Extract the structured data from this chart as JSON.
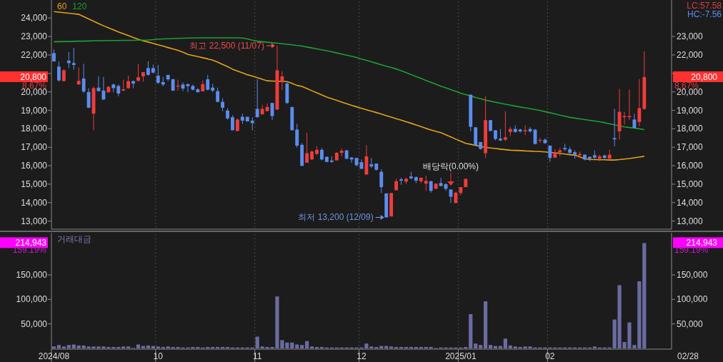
{
  "chart_data": [
    {
      "type": "candlestick",
      "categories": [
        "2024/08",
        null,
        null,
        null,
        null,
        null,
        null,
        null,
        null,
        null,
        null,
        null,
        null,
        null,
        null,
        null,
        null,
        null,
        null,
        null,
        null,
        "10",
        null,
        null,
        null,
        null,
        null,
        null,
        null,
        null,
        null,
        null,
        null,
        null,
        null,
        null,
        null,
        null,
        null,
        null,
        null,
        "11",
        null,
        null,
        null,
        null,
        null,
        null,
        null,
        null,
        null,
        null,
        null,
        null,
        null,
        null,
        null,
        null,
        null,
        null,
        null,
        null,
        "12",
        null,
        null,
        null,
        null,
        null,
        null,
        null,
        null,
        null,
        null,
        null,
        null,
        null,
        null,
        null,
        null,
        null,
        null,
        null,
        "2025/01",
        null,
        null,
        null,
        null,
        null,
        null,
        null,
        null,
        null,
        null,
        null,
        null,
        null,
        null,
        null,
        null,
        null,
        "02",
        null,
        null,
        null,
        null,
        null,
        null,
        null,
        null,
        null,
        null,
        null,
        null,
        null,
        null,
        null,
        null,
        null,
        null,
        null,
        null,
        null,
        null,
        null,
        null
      ],
      "ohlc": [
        [
          22100,
          22300,
          21650,
          21650
        ],
        [
          21370,
          21650,
          20560,
          20620
        ],
        [
          20580,
          21240,
          20580,
          21170
        ],
        [
          21690,
          22160,
          21300,
          21560
        ],
        [
          21560,
          22380,
          21200,
          21460
        ],
        [
          20400,
          21330,
          20400,
          20595
        ],
        [
          20720,
          21520,
          19940,
          20020
        ],
        [
          19990,
          20200,
          19120,
          19140
        ],
        [
          18820,
          20300,
          17920,
          20200
        ],
        [
          20230,
          20840,
          20020,
          20040
        ],
        [
          20070,
          20810,
          19550,
          19590
        ],
        [
          19980,
          20320,
          19960,
          20270
        ],
        [
          20400,
          20450,
          19980,
          20200
        ],
        [
          20320,
          20400,
          19760,
          19910
        ],
        [
          20070,
          20660,
          20040,
          20140
        ],
        [
          20200,
          20880,
          20170,
          20580
        ],
        [
          20580,
          20620,
          20200,
          20450
        ],
        [
          20600,
          21520,
          20560,
          20790
        ],
        [
          20840,
          21070,
          20560,
          21070
        ],
        [
          21290,
          21650,
          20880,
          20920
        ],
        [
          21290,
          21480,
          21010,
          21040
        ],
        [
          20880,
          21460,
          20430,
          20490
        ],
        [
          20530,
          20810,
          20300,
          20400
        ],
        [
          20920,
          20920,
          20590,
          20680
        ],
        [
          20680,
          20710,
          20040,
          20070
        ],
        [
          20290,
          20660,
          20070,
          20340
        ],
        [
          20400,
          20520,
          20040,
          20180
        ],
        [
          20420,
          20450,
          19980,
          20310
        ],
        [
          20320,
          20400,
          20070,
          20120
        ],
        [
          20140,
          20200,
          19980,
          19980
        ],
        [
          20030,
          20620,
          20030,
          20420
        ],
        [
          20680,
          20920,
          20070,
          20120
        ],
        [
          20230,
          20430,
          19980,
          20070
        ],
        [
          20040,
          20230,
          19430,
          19460
        ],
        [
          19460,
          19660,
          18950,
          19140
        ],
        [
          18990,
          19120,
          18500,
          18560
        ],
        [
          18630,
          18730,
          17920,
          17920
        ],
        [
          17880,
          18560,
          17880,
          18500
        ],
        [
          18650,
          18820,
          18270,
          18440
        ],
        [
          18650,
          18650,
          18400,
          18400
        ],
        [
          18440,
          18630,
          17920,
          18310
        ],
        [
          19080,
          20690,
          18600,
          18630
        ],
        [
          18780,
          19300,
          18780,
          19080
        ],
        [
          18960,
          19370,
          18950,
          19180
        ],
        [
          19400,
          19400,
          18470,
          18690
        ],
        [
          19040,
          22500,
          19040,
          21170
        ],
        [
          20560,
          21120,
          20090,
          20840
        ],
        [
          20450,
          20560,
          19340,
          19400
        ],
        [
          19180,
          19180,
          17920,
          17920
        ],
        [
          17960,
          18270,
          16980,
          17090
        ],
        [
          17130,
          17220,
          15990,
          15990
        ],
        [
          16160,
          17790,
          16160,
          16680
        ],
        [
          16340,
          16830,
          16320,
          16770
        ],
        [
          16640,
          17060,
          16570,
          16860
        ],
        [
          16860,
          16960,
          16290,
          16340
        ],
        [
          16480,
          16510,
          16180,
          16210
        ],
        [
          16280,
          16510,
          16160,
          16210
        ],
        [
          16290,
          16730,
          16290,
          16700
        ],
        [
          16700,
          16930,
          16510,
          16810
        ],
        [
          16830,
          16860,
          16340,
          16380
        ],
        [
          16440,
          16470,
          16160,
          16340
        ],
        [
          16420,
          16440,
          15960,
          16030
        ],
        [
          16190,
          16340,
          15830,
          15830
        ],
        [
          15520,
          17110,
          15520,
          16510
        ],
        [
          16080,
          16420,
          15870,
          15960
        ],
        [
          16120,
          16120,
          15740,
          15780
        ],
        [
          15670,
          15800,
          14520,
          14840
        ],
        [
          14500,
          14500,
          13200,
          13200
        ],
        [
          13250,
          14520,
          13250,
          14520
        ],
        [
          14670,
          15290,
          14670,
          15160
        ],
        [
          15260,
          15350,
          14970,
          15190
        ],
        [
          15140,
          15350,
          15010,
          15290
        ],
        [
          15420,
          15670,
          15260,
          15320
        ],
        [
          15380,
          15420,
          15060,
          15190
        ],
        [
          15160,
          15350,
          15060,
          15350
        ],
        [
          15030,
          15450,
          14640,
          15180
        ],
        [
          15160,
          15180,
          14540,
          14640
        ],
        [
          14750,
          15030,
          14750,
          15030
        ],
        [
          15060,
          15350,
          14880,
          14900
        ],
        [
          15000,
          15060,
          14640,
          14750
        ],
        [
          14710,
          14710,
          13980,
          14320
        ],
        [
          13980,
          14580,
          13980,
          14540
        ],
        [
          14520,
          14840,
          14390,
          14840
        ],
        [
          14840,
          15290,
          14840,
          15290
        ],
        [
          19850,
          19850,
          17860,
          18110
        ],
        [
          18080,
          18080,
          17090,
          17110
        ],
        [
          17280,
          17280,
          16870,
          16910
        ],
        [
          16680,
          19760,
          16420,
          18470
        ],
        [
          18470,
          18470,
          17880,
          17880
        ],
        [
          17920,
          17920,
          17370,
          17450
        ],
        [
          17470,
          17990,
          17340,
          17370
        ],
        [
          17410,
          18950,
          17340,
          17540
        ],
        [
          17830,
          18110,
          17600,
          17990
        ],
        [
          17990,
          18180,
          17790,
          17830
        ],
        [
          17960,
          18010,
          17790,
          17860
        ],
        [
          17860,
          18180,
          17660,
          17920
        ],
        [
          17990,
          18090,
          17790,
          17860
        ],
        [
          17950,
          17990,
          17150,
          17180
        ],
        [
          17360,
          17520,
          17240,
          17390
        ],
        [
          17410,
          17480,
          17190,
          17220
        ],
        [
          17090,
          17090,
          16210,
          16420
        ],
        [
          16440,
          16890,
          16420,
          16730
        ],
        [
          16730,
          16960,
          16510,
          16830
        ],
        [
          16960,
          17190,
          16800,
          16890
        ],
        [
          16890,
          17020,
          16640,
          16700
        ],
        [
          16730,
          16830,
          16380,
          16600
        ],
        [
          16570,
          16770,
          16440,
          16640
        ],
        [
          16600,
          16600,
          16290,
          16340
        ],
        [
          16480,
          16510,
          16250,
          16380
        ],
        [
          16570,
          16830,
          16380,
          16440
        ],
        [
          16380,
          16600,
          16250,
          16510
        ],
        [
          16550,
          16600,
          16380,
          16420
        ],
        [
          16380,
          16870,
          16380,
          16600
        ],
        [
          17500,
          19080,
          17060,
          17430
        ],
        [
          17860,
          20160,
          17410,
          18920
        ],
        [
          18630,
          18920,
          18220,
          18690
        ],
        [
          18630,
          20120,
          18470,
          18690
        ],
        [
          18500,
          18820,
          18050,
          18050
        ],
        [
          18370,
          20690,
          18140,
          19120
        ],
        [
          19080,
          22200,
          19020,
          20800
        ],
        null,
        null,
        null,
        null,
        null
      ],
      "colors": [
        "#5b8def",
        "#5b8def",
        "#f23b3b",
        "#5b8def",
        "#5b8def",
        "#f23b3b",
        "#5b8def",
        "#5b8def",
        "#f23b3b",
        "#5b8def",
        "#5b8def",
        "#f23b3b",
        "#5b8def",
        "#5b8def",
        "#f23b3b",
        "#f23b3b",
        "#5b8def",
        "#f23b3b",
        "#f23b3b",
        "#5b8def",
        "#5b8def",
        "#5b8def",
        "#5b8def",
        "#5b8def",
        "#5b8def",
        "#f23b3b",
        "#5b8def",
        "#5b8def",
        "#5b8def",
        "#5b8def",
        "#f23b3b",
        "#5b8def",
        "#5b8def",
        "#5b8def",
        "#5b8def",
        "#5b8def",
        "#5b8def",
        "#f23b3b",
        "#5b8def",
        "#5b8def",
        "#5b8def",
        "#5b8def",
        "#f23b3b",
        "#f23b3b",
        "#5b8def",
        "#f23b3b",
        "#f23b3b",
        "#5b8def",
        "#5b8def",
        "#5b8def",
        "#5b8def",
        "#f23b3b",
        "#f23b3b",
        "#f23b3b",
        "#5b8def",
        "#5b8def",
        "#5b8def",
        "#f23b3b",
        "#f23b3b",
        "#5b8def",
        "#5b8def",
        "#5b8def",
        "#5b8def",
        "#f23b3b",
        "#5b8def",
        "#5b8def",
        "#5b8def",
        "#5b8def",
        "#f23b3b",
        "#f23b3b",
        "#5b8def",
        "#f23b3b",
        "#5b8def",
        "#5b8def",
        "#f23b3b",
        "#f23b3b",
        "#5b8def",
        "#f23b3b",
        "#5b8def",
        "#5b8def",
        "#5b8def",
        "#f23b3b",
        "#f23b3b",
        "#f23b3b",
        "#5b8def",
        "#5b8def",
        "#5b8def",
        "#f23b3b",
        "#5b8def",
        "#5b8def",
        "#5b8def",
        "#f23b3b",
        "#f23b3b",
        "#5b8def",
        "#5b8def",
        "#f23b3b",
        "#5b8def",
        "#5b8def",
        "#f23b3b",
        "#5b8def",
        "#5b8def",
        "#f23b3b",
        "#f23b3b",
        "#5b8def",
        "#5b8def",
        "#5b8def",
        "#f23b3b",
        "#5b8def",
        "#5b8def",
        "#5b8def",
        "#f23b3b",
        "#5b8def",
        "#f23b3b",
        "#5b8def",
        "#f23b3b",
        "#f23b3b",
        "#f23b3b",
        "#5b8def",
        "#f23b3b",
        "#f23b3b",
        null,
        null,
        null,
        null,
        null
      ],
      "series": [
        {
          "name": "60",
          "type": "line",
          "color": "#e3a21a",
          "values": [
            24350,
            24320,
            24290,
            24260,
            24230,
            24200,
            24080,
            23950,
            23830,
            23700,
            23580,
            23470,
            23360,
            23250,
            23150,
            23050,
            22950,
            22850,
            22760,
            22700,
            22630,
            22550,
            22480,
            22400,
            22330,
            22250,
            22150,
            22030,
            21970,
            21910,
            21850,
            21790,
            21720,
            21610,
            21490,
            21370,
            21230,
            21130,
            21030,
            20930,
            20860,
            20770,
            20680,
            20600,
            20590,
            20580,
            20570,
            20560,
            20460,
            20350,
            20300,
            20180,
            20060,
            19950,
            19830,
            19720,
            19630,
            19540,
            19450,
            19360,
            19270,
            19190,
            19110,
            19030,
            18950,
            18880,
            18800,
            18710,
            18630,
            18550,
            18470,
            18380,
            18300,
            18210,
            18120,
            18020,
            17940,
            17860,
            17790,
            17680,
            17560,
            17440,
            17330,
            17210,
            17160,
            17100,
            17050,
            17000,
            16960,
            16930,
            16900,
            16870,
            16840,
            16830,
            16820,
            16800,
            16790,
            16780,
            16770,
            16750,
            16720,
            16700,
            16670,
            16630,
            16600,
            16570,
            16480,
            16370,
            16340,
            16330,
            16320,
            16320,
            16310,
            16310,
            16330,
            16360,
            16390,
            16430,
            16470,
            16510,
            null,
            null,
            null,
            null,
            null
          ]
        },
        {
          "name": "120",
          "type": "line",
          "color": "#1e9e33",
          "values": [
            22720,
            22720,
            22730,
            22730,
            22740,
            22750,
            22750,
            22760,
            22770,
            22770,
            22770,
            22780,
            22780,
            22780,
            22790,
            22790,
            22790,
            22800,
            22800,
            22810,
            22830,
            22850,
            22870,
            22880,
            22890,
            22900,
            22910,
            22920,
            22920,
            22930,
            22930,
            22930,
            22930,
            22930,
            22930,
            22930,
            22930,
            22930,
            22920,
            22870,
            22800,
            22750,
            22720,
            22690,
            22660,
            22640,
            22610,
            22580,
            22550,
            22510,
            22480,
            22430,
            22380,
            22330,
            22280,
            22230,
            22170,
            22110,
            22050,
            21990,
            21930,
            21860,
            21780,
            21710,
            21630,
            21550,
            21470,
            21390,
            21320,
            21240,
            21150,
            21040,
            20940,
            20830,
            20730,
            20620,
            20520,
            20410,
            20310,
            20220,
            20120,
            20030,
            19930,
            19850,
            19780,
            19700,
            19630,
            19550,
            19500,
            19440,
            19390,
            19330,
            19280,
            19230,
            19180,
            19140,
            19090,
            19040,
            18990,
            18930,
            18870,
            18810,
            18740,
            18680,
            18620,
            18580,
            18540,
            18500,
            18460,
            18420,
            18380,
            18330,
            18270,
            18220,
            18160,
            18100,
            18070,
            18040,
            18000,
            17960,
            null,
            null,
            null,
            null,
            null
          ]
        }
      ],
      "ylim": [
        12600,
        24900
      ],
      "yticks": [
        {
          "value": 13000,
          "label": "13,000"
        },
        {
          "value": 14000,
          "label": "14,000"
        },
        {
          "value": 15000,
          "label": "15,000"
        },
        {
          "value": 16000,
          "label": "16,000"
        },
        {
          "value": 17000,
          "label": "17,000"
        },
        {
          "value": 18000,
          "label": "18,000"
        },
        {
          "value": 19000,
          "label": "19,000"
        },
        {
          "value": 20000,
          "label": "20,000"
        },
        {
          "value": 21000,
          "label": null
        },
        {
          "value": 22000,
          "label": "22,000"
        },
        {
          "value": 23000,
          "label": "23,000"
        },
        {
          "value": 24000,
          "label": "24,000"
        }
      ],
      "y2lim": [
        12600,
        24900
      ],
      "y2ticks": [
        {
          "value": 13000,
          "label": "13,000"
        },
        {
          "value": 14000,
          "label": "14,000"
        },
        {
          "value": 15000,
          "label": "15,000"
        },
        {
          "value": 16000,
          "label": "16,000"
        },
        {
          "value": 17000,
          "label": "17,000"
        },
        {
          "value": 18000,
          "label": "18,000"
        },
        {
          "value": 19000,
          "label": "19,000"
        },
        {
          "value": 20000,
          "label": "20,000"
        },
        {
          "value": 21000,
          "label": null
        },
        {
          "value": 22000,
          "label": "22,000"
        },
        {
          "value": 23000,
          "label": "23,000"
        }
      ],
      "tick_labels": "y",
      "grid": "x",
      "legend": "top left",
      "annotations": [
        "최고 22,500 (11/07)",
        "최저 13,200 (12/09)",
        "배당락(0.00%)",
        "20,800",
        "8.67%",
        "LC:57.58",
        "HC:-7.56"
      ]
    },
    {
      "type": "bar",
      "title": "거래대금",
      "categories": [
        "2024/08",
        null,
        null,
        null,
        null,
        null,
        null,
        null,
        null,
        null,
        null,
        null,
        null,
        null,
        null,
        null,
        null,
        null,
        null,
        null,
        null,
        "10",
        null,
        null,
        null,
        null,
        null,
        null,
        null,
        null,
        null,
        null,
        null,
        null,
        null,
        null,
        null,
        null,
        null,
        null,
        null,
        "11",
        null,
        null,
        null,
        null,
        null,
        null,
        null,
        null,
        null,
        null,
        null,
        null,
        null,
        null,
        null,
        null,
        null,
        null,
        null,
        null,
        "12",
        null,
        null,
        null,
        null,
        null,
        null,
        null,
        null,
        null,
        null,
        null,
        null,
        null,
        null,
        null,
        null,
        null,
        null,
        null,
        "2025/01",
        null,
        null,
        null,
        null,
        null,
        null,
        null,
        null,
        null,
        null,
        null,
        null,
        null,
        null,
        null,
        null,
        null,
        "02",
        null,
        null,
        null,
        null,
        null,
        null,
        null,
        null,
        null,
        null,
        null,
        null,
        null,
        null,
        null,
        null,
        null,
        null,
        null,
        null,
        null,
        null,
        null,
        null
      ],
      "values": [
        4000,
        7000,
        4000,
        7000,
        8000,
        6000,
        6000,
        4000,
        4000,
        4000,
        4000,
        3000,
        3000,
        3000,
        4000,
        4000,
        1000,
        8000,
        5000,
        6000,
        5000,
        4000,
        3000,
        4000,
        3000,
        3000,
        2000,
        2000,
        3000,
        3000,
        2000,
        3000,
        3000,
        3000,
        3000,
        3000,
        2000,
        2000,
        2000,
        2000,
        2000,
        24000,
        4000,
        3000,
        3000,
        106000,
        17000,
        12000,
        12000,
        8000,
        7000,
        15000,
        4000,
        3000,
        3000,
        2000,
        2000,
        2000,
        2000,
        2000,
        2000,
        2000,
        2000,
        10000,
        4000,
        3000,
        5000,
        5000,
        4000,
        3000,
        3000,
        3000,
        3000,
        3000,
        3000,
        3000,
        3000,
        1000,
        2000,
        2000,
        2000,
        2000,
        2000,
        3000,
        70000,
        10000,
        7000,
        96000,
        7000,
        5000,
        5000,
        20000,
        6000,
        4000,
        3000,
        4000,
        4000,
        2000,
        2000,
        2000,
        2000,
        2000,
        2000,
        2000,
        2000,
        2000,
        2000,
        2000,
        2000,
        4000,
        2000,
        2000,
        2000,
        59000,
        129000,
        13000,
        53000,
        7000,
        137000,
        214943,
        null,
        null,
        null,
        null,
        null
      ],
      "color": "#6b6ba3",
      "ylim": [
        0,
        233000
      ],
      "yticks": [
        {
          "value": 50000,
          "label": "50,000"
        },
        {
          "value": 100000,
          "label": "100,000"
        },
        {
          "value": 150000,
          "label": "150,000"
        }
      ],
      "y2lim": [
        0,
        233000
      ],
      "y2ticks": [
        {
          "value": 50000,
          "label": "50,000"
        },
        {
          "value": 100000,
          "label": "100,000"
        },
        {
          "value": 150000,
          "label": "150,000"
        }
      ],
      "grid": "x",
      "annotations": [
        "214,943",
        "159.19%",
        "02/28"
      ]
    }
  ]
}
